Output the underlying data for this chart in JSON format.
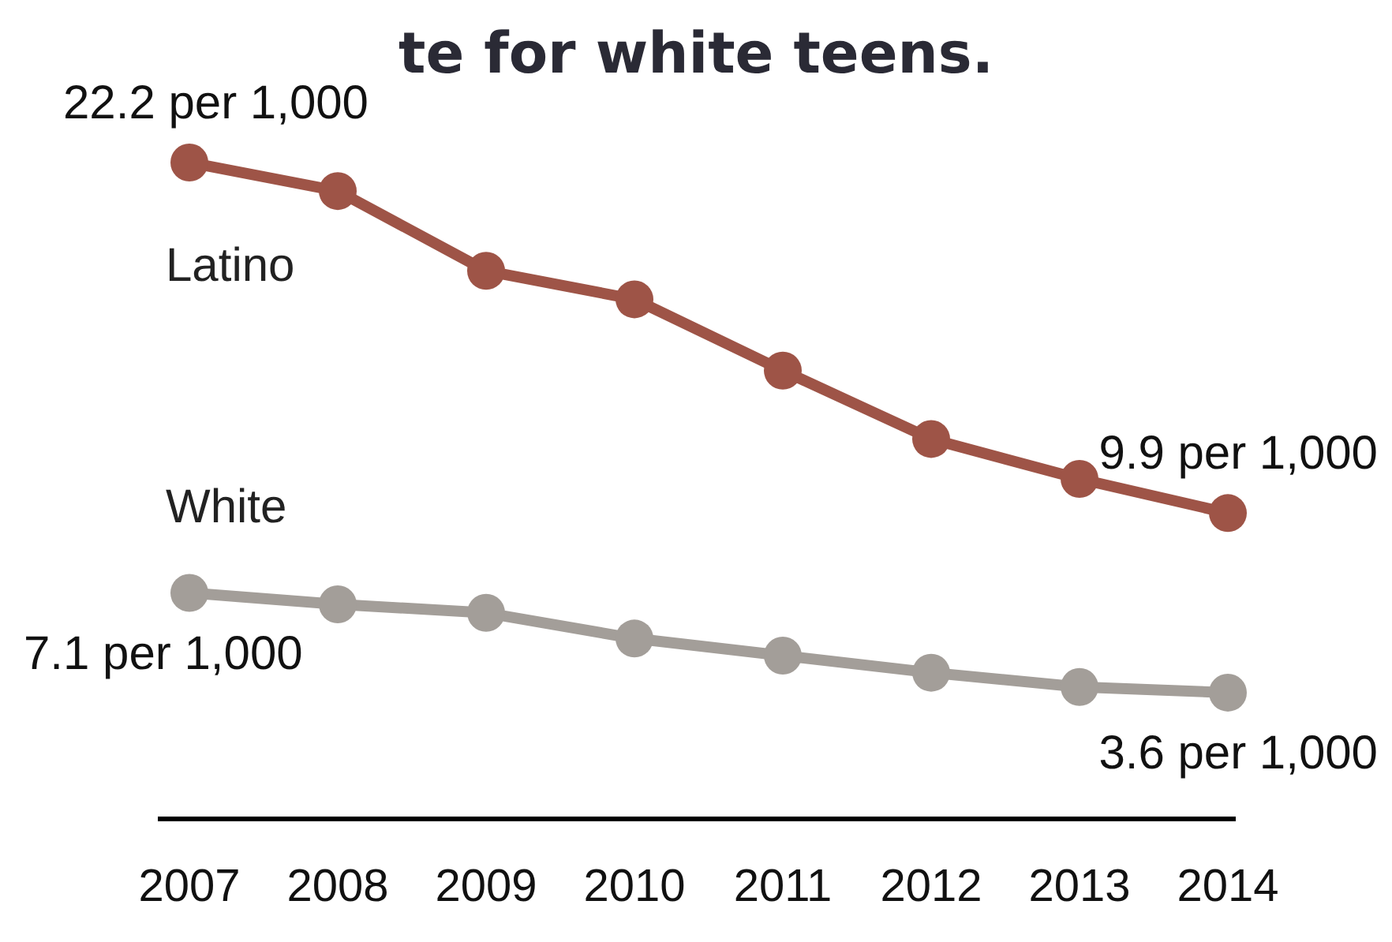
{
  "chart_data": {
    "type": "line",
    "title": "te for white teens.",
    "categories": [
      "2007",
      "2008",
      "2009",
      "2010",
      "2011",
      "2012",
      "2013",
      "2014"
    ],
    "tick_labels": "x",
    "marker": "circle",
    "line_style": "solid",
    "series": [
      {
        "name": "Latino",
        "color": "#9e5447",
        "values": [
          22.2,
          21.2,
          18.4,
          17.4,
          14.9,
          12.5,
          11.1,
          9.9
        ],
        "value_labels": [
          "22.2 per 1,000",
          null,
          null,
          null,
          null,
          null,
          null,
          "9.9 per 1,000"
        ]
      },
      {
        "name": "White",
        "color": "#a39e99",
        "values": [
          7.1,
          6.7,
          6.4,
          5.5,
          4.9,
          4.3,
          3.8,
          3.6
        ],
        "value_labels": [
          "7.1 per 1,000",
          null,
          null,
          null,
          null,
          null,
          null,
          "3.6 per 1,000"
        ]
      }
    ]
  }
}
